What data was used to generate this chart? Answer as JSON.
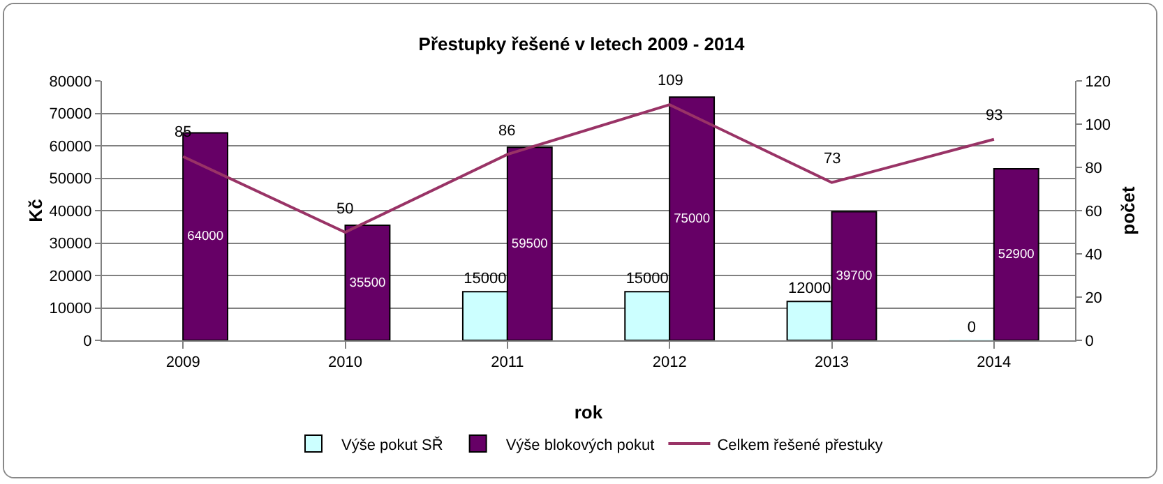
{
  "chart_data": {
    "type": "bar",
    "title": "Přestupky řešené v letech 2009 - 2014",
    "xlabel": "rok",
    "ylabel": "Kč",
    "y2label": "počet",
    "categories": [
      "2009",
      "2010",
      "2011",
      "2012",
      "2013",
      "2014"
    ],
    "series": [
      {
        "name": "Výše pokut SŘ",
        "color": "#ccffff",
        "values": [
          null,
          null,
          15000,
          15000,
          12000,
          0
        ],
        "value_labels": [
          null,
          null,
          "15000",
          "15000",
          "12000",
          "0"
        ]
      },
      {
        "name": "Výše blokových pokut",
        "color": "#660066",
        "values": [
          64000,
          35500,
          59500,
          75000,
          39700,
          52900
        ],
        "value_labels": [
          "64000",
          "35500",
          "59500",
          "75000",
          "39700",
          "52900"
        ]
      },
      {
        "name": "Celkem řešené přestuky",
        "type": "line",
        "axis": "y2",
        "color": "#993366",
        "values": [
          85,
          50,
          86,
          109,
          73,
          93
        ],
        "value_labels": [
          "85",
          "50",
          "86",
          "109",
          "73",
          "93"
        ]
      }
    ],
    "ylim": [
      0,
      80000
    ],
    "yticks": [
      0,
      10000,
      20000,
      30000,
      40000,
      50000,
      60000,
      70000,
      80000
    ],
    "y2lim": [
      0,
      120
    ],
    "y2ticks": [
      0,
      20,
      40,
      60,
      80,
      100,
      120
    ],
    "grid": "y",
    "legend": "bottom"
  }
}
